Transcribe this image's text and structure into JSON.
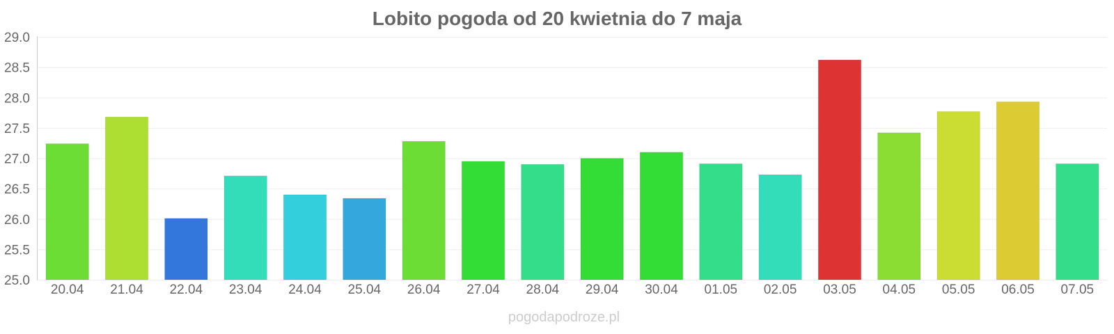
{
  "chart_data": {
    "type": "bar",
    "title": "Lobito pogoda od 20 kwietnia do 7 maja",
    "xlabel": "",
    "ylabel": "",
    "ylim": [
      25.0,
      29.0
    ],
    "y_ticks": [
      "25.0",
      "25.5",
      "26.0",
      "26.5",
      "27.0",
      "27.5",
      "28.0",
      "28.5",
      "29.0"
    ],
    "grid": true,
    "legend": "none",
    "categories": [
      "20.04",
      "21.04",
      "22.04",
      "23.04",
      "24.04",
      "25.04",
      "26.04",
      "27.04",
      "28.04",
      "29.04",
      "30.04",
      "01.05",
      "02.05",
      "03.05",
      "04.05",
      "05.05",
      "06.05",
      "07.05"
    ],
    "values": [
      27.24,
      27.68,
      26.01,
      26.71,
      26.4,
      26.34,
      27.28,
      26.95,
      26.9,
      27.0,
      27.1,
      26.91,
      26.73,
      28.62,
      27.42,
      27.77,
      27.93,
      26.91
    ],
    "colors": [
      "#6bdd34",
      "#addf33",
      "#3377dd",
      "#34ddba",
      "#34cfdd",
      "#34a8dd",
      "#6bdd34",
      "#33dd35",
      "#34dd8a",
      "#33dd35",
      "#33dd35",
      "#34dd8a",
      "#34ddba",
      "#dd3333",
      "#8bdd34",
      "#cbdd33",
      "#ddcb33",
      "#34dd8a"
    ]
  },
  "watermark": "pogodapodroze.pl"
}
